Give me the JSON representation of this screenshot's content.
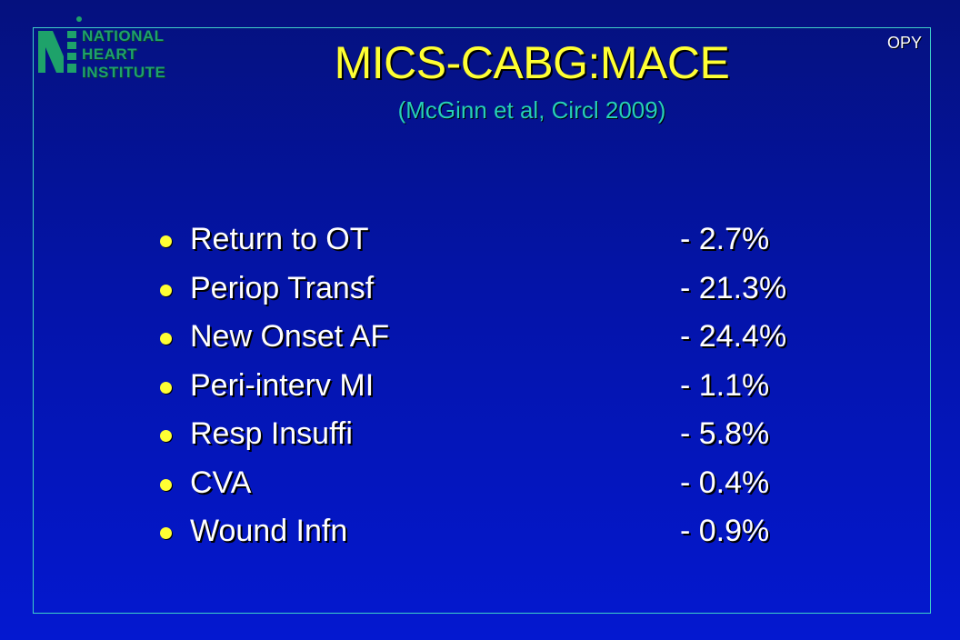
{
  "logo": {
    "lines": [
      "NATIONAL",
      "HEART",
      "INSTITUTE"
    ],
    "icon": "nhi-logo-icon",
    "color": "#1ea26a"
  },
  "corner_tag": "OPY",
  "title": "MICS-CABG:MACE",
  "subtitle": "(McGinn et al, Circl 2009)",
  "colors": {
    "background": "#0414a8",
    "title": "#ffff33",
    "subtitle": "#26d0b8",
    "text": "#ffffff",
    "bullet": "#ffff33",
    "frame": "#3fd0c8"
  },
  "items": [
    {
      "label": "Return to OT",
      "value": "- 2.7%"
    },
    {
      "label": "Periop Transf",
      "value": "- 21.3%"
    },
    {
      "label": "New Onset AF",
      "value": "- 24.4%"
    },
    {
      "label": "Peri-interv MI",
      "value": "- 1.1%"
    },
    {
      "label": "Resp Insuffi",
      "value": "- 5.8%"
    },
    {
      "label": "CVA",
      "value": "- 0.4%"
    },
    {
      "label": "Wound Infn",
      "value": "- 0.9%"
    }
  ]
}
